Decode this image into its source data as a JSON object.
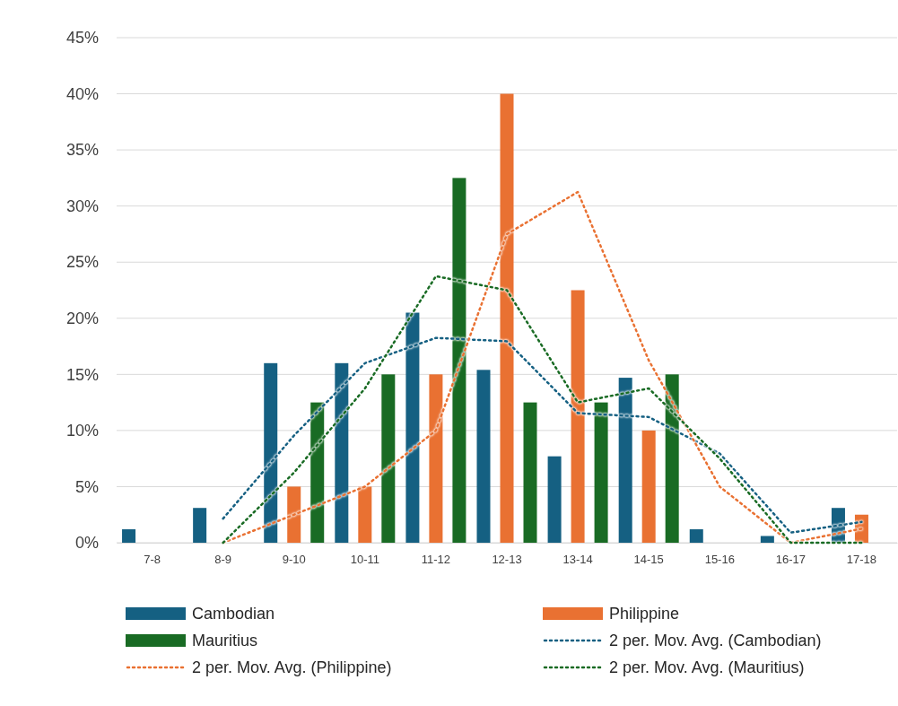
{
  "chart_data": {
    "type": "bar",
    "categories": [
      "7-8",
      "8-9",
      "9-10",
      "10-11",
      "11-12",
      "12-13",
      "13-14",
      "14-15",
      "15-16",
      "16-17",
      "17-18"
    ],
    "ylim": [
      0,
      45
    ],
    "yticks": [
      {
        "value": 0,
        "label": "0%"
      },
      {
        "value": 5,
        "label": "5%"
      },
      {
        "value": 10,
        "label": "10%"
      },
      {
        "value": 15,
        "label": "15%"
      },
      {
        "value": 20,
        "label": "20%"
      },
      {
        "value": 25,
        "label": "25%"
      },
      {
        "value": 30,
        "label": "30%"
      },
      {
        "value": 35,
        "label": "35%"
      },
      {
        "value": 40,
        "label": "40%"
      },
      {
        "value": 45,
        "label": "45%"
      }
    ],
    "grid": "y",
    "legend": "bottom",
    "series": [
      {
        "name": "Cambodian",
        "color": "#156082",
        "values": [
          1.2,
          3.1,
          16,
          16,
          20.5,
          15.4,
          7.7,
          14.7,
          1.2,
          0.6,
          3.1
        ]
      },
      {
        "name": "Philippine",
        "color": "#e97132",
        "values": [
          0,
          0,
          5,
          5,
          15,
          40,
          22.5,
          10,
          0,
          0,
          2.5
        ]
      },
      {
        "name": "Mauritius",
        "color": "#196b24",
        "values": [
          0,
          0,
          12.5,
          15,
          32.5,
          12.5,
          12.5,
          15,
          0,
          0,
          0
        ]
      },
      {
        "name": "2 per. Mov. Avg. (Cambodian)",
        "type": "line",
        "line_style": "dotted",
        "marker": "none",
        "color": "#156082",
        "values": [
          null,
          2.15,
          9.55,
          16,
          18.25,
          17.95,
          11.55,
          11.2,
          7.95,
          0.9,
          1.85
        ]
      },
      {
        "name": "2 per. Mov. Avg. (Philippine)",
        "type": "line",
        "line_style": "dotted",
        "marker": "none",
        "color": "#e97132",
        "values": [
          null,
          0,
          2.5,
          5,
          10,
          27.5,
          31.25,
          16.25,
          5,
          0,
          1.25
        ]
      },
      {
        "name": "2 per. Mov. Avg. (Mauritius)",
        "type": "line",
        "line_style": "dotted",
        "marker": "none",
        "color": "#196b24",
        "values": [
          null,
          0,
          6.25,
          13.75,
          23.75,
          22.5,
          12.5,
          13.75,
          7.5,
          0,
          0
        ]
      }
    ]
  }
}
